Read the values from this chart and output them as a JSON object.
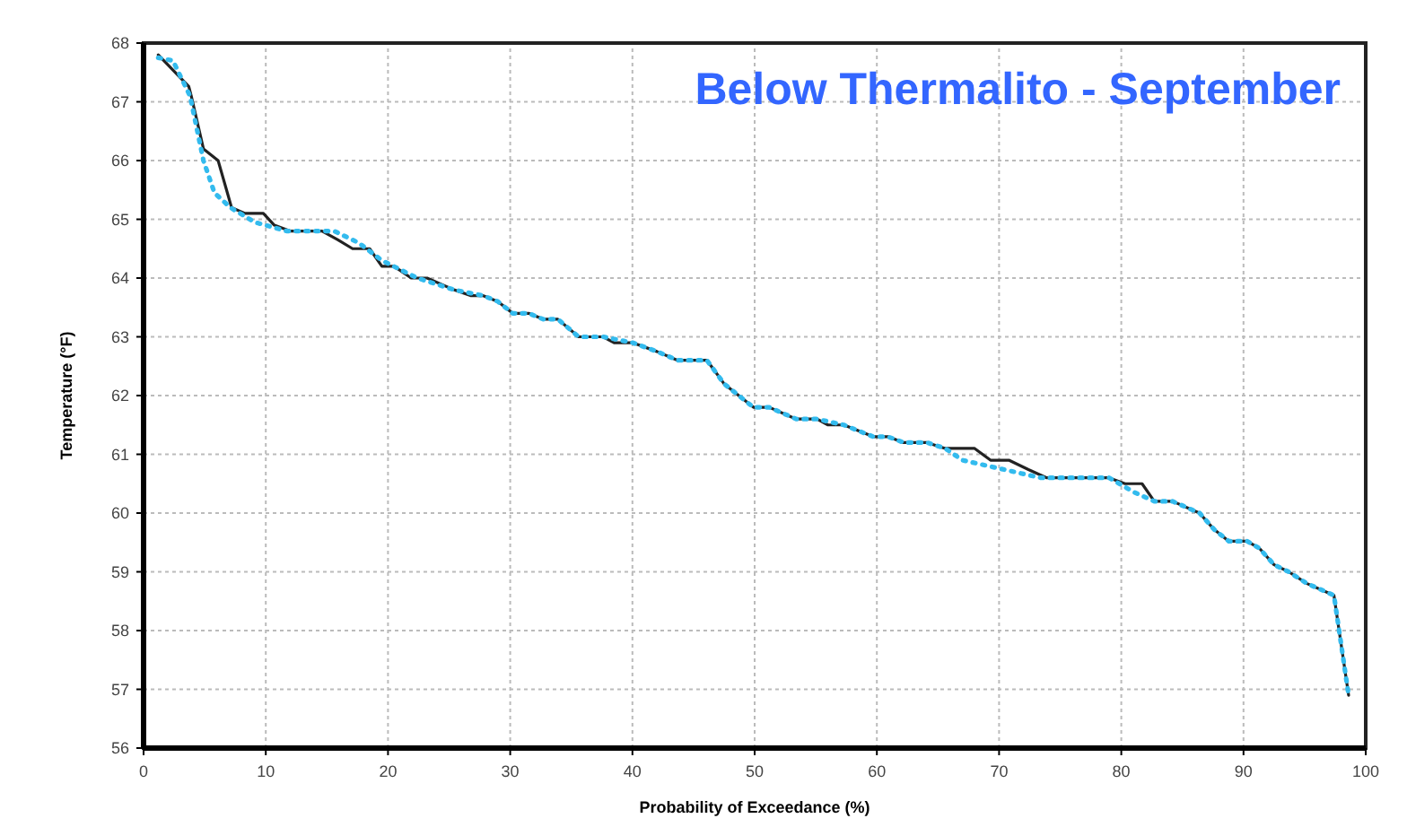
{
  "chart_data": {
    "type": "line",
    "title": "Below Thermalito - September",
    "xlabel": "Probability of Exceedance (%)",
    "ylabel": "Temperature (°F)",
    "xlim": [
      0,
      100
    ],
    "xticks": [
      0,
      10,
      20,
      30,
      40,
      50,
      60,
      70,
      80,
      90,
      100
    ],
    "ylim": [
      56,
      68
    ],
    "yticks": [
      56,
      57,
      58,
      59,
      60,
      61,
      62,
      63,
      64,
      65,
      66,
      67,
      68
    ],
    "grid": true,
    "marker": "none",
    "series": [
      {
        "color": "#222222",
        "line_style": "solid",
        "x": [
          1.2,
          3.7,
          3.9,
          4.9,
          6.1,
          7.2,
          8.3,
          9.8,
          10.7,
          12,
          14.6,
          15.9,
          17.1,
          18.5,
          19.5,
          20.5,
          21.9,
          23.2,
          25.4,
          26.8,
          27.8,
          29,
          30.2,
          31.5,
          32.7,
          33.9,
          35.6,
          37.6,
          38.5,
          40,
          42,
          43.7,
          46.1,
          46.8,
          47.5,
          49.9,
          51.2,
          53.4,
          55.1,
          56,
          57.3,
          59.7,
          60.9,
          62.2,
          64.1,
          65.6,
          68,
          69.3,
          70.8,
          72.4,
          73.9,
          79,
          80.3,
          81.7,
          82.7,
          84.2,
          86.4,
          87.6,
          88.8,
          90.3,
          91.3,
          92.5,
          93.7,
          95.2,
          97.4,
          98.6
        ],
        "values": [
          67.8,
          67.26,
          67.1,
          66.2,
          66,
          65.2,
          65.1,
          65.1,
          64.9,
          64.8,
          64.8,
          64.65,
          64.5,
          64.5,
          64.2,
          64.2,
          64,
          64,
          63.8,
          63.7,
          63.7,
          63.6,
          63.4,
          63.4,
          63.3,
          63.3,
          63,
          63,
          62.9,
          62.9,
          62.75,
          62.6,
          62.6,
          62.4,
          62.2,
          61.8,
          61.8,
          61.6,
          61.6,
          61.5,
          61.5,
          61.3,
          61.3,
          61.2,
          61.2,
          61.1,
          61.1,
          60.9,
          60.9,
          60.74,
          60.6,
          60.6,
          60.5,
          60.5,
          60.2,
          60.2,
          60,
          59.72,
          59.52,
          59.52,
          59.4,
          59.12,
          59,
          58.8,
          58.6,
          56.9
        ]
      },
      {
        "color": "#33bbee",
        "line_style": "dotted",
        "x": [
          1.2,
          2.4,
          3.8,
          4.9,
          5.8,
          7.1,
          9.1,
          11.7,
          15.6,
          17.6,
          19.5,
          22.4,
          25.4,
          27.8,
          29,
          30.2,
          31.5,
          32.7,
          33.9,
          35.6,
          37.6,
          40,
          42,
          43.7,
          46.1,
          46.8,
          47.5,
          49.9,
          51.2,
          53.4,
          55.1,
          57.3,
          59.7,
          60.9,
          62.2,
          64.1,
          65.6,
          67,
          70,
          73.4,
          79,
          81,
          82.7,
          84.2,
          86.4,
          87.6,
          88.8,
          90.3,
          91.3,
          92.5,
          93.7,
          95.2,
          97.4,
          98.6
        ],
        "values": [
          67.75,
          67.7,
          67.1,
          66,
          65.45,
          65.2,
          64.95,
          64.8,
          64.8,
          64.6,
          64.3,
          64,
          63.8,
          63.7,
          63.6,
          63.4,
          63.4,
          63.3,
          63.3,
          63,
          63,
          62.9,
          62.75,
          62.6,
          62.6,
          62.4,
          62.2,
          61.8,
          61.8,
          61.6,
          61.6,
          61.5,
          61.3,
          61.3,
          61.2,
          61.2,
          61.1,
          60.9,
          60.76,
          60.6,
          60.6,
          60.36,
          60.2,
          60.2,
          60,
          59.72,
          59.52,
          59.52,
          59.4,
          59.12,
          59,
          58.8,
          58.6,
          56.9
        ]
      }
    ]
  }
}
